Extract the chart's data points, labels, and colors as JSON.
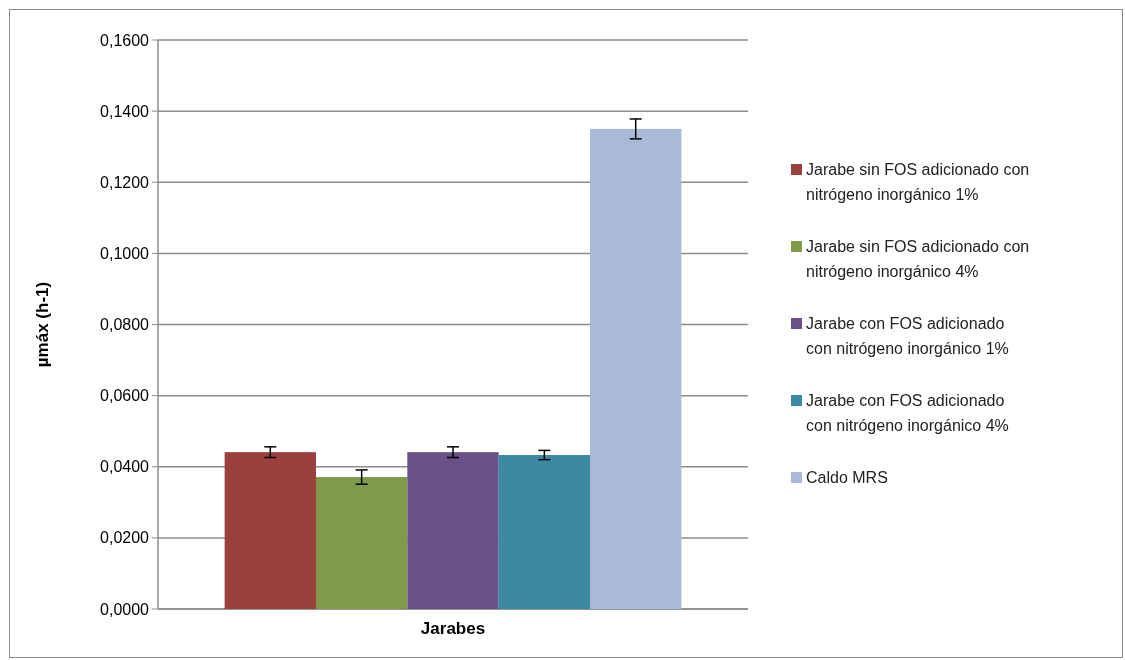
{
  "chart_data": {
    "type": "bar",
    "xlabel": "Jarabes",
    "ylabel": "µmáx (h-1)",
    "categories": [
      null
    ],
    "series": [
      {
        "name": "Jarabe sin FOS adicionado con nitrógeno inorgánico 1%",
        "color": "#9c403e",
        "values": [
          0.0441
        ],
        "errors": [
          0.0015
        ]
      },
      {
        "name": "Jarabe sin FOS adicionado con nitrógeno inorgánico 4%",
        "color": "#7f9a48",
        "values": [
          0.0371
        ],
        "errors": [
          0.002
        ]
      },
      {
        "name": "Jarabe con FOS adicionado con nitrógeno inorgánico 1%",
        "color": "#695086",
        "values": [
          0.0441
        ],
        "errors": [
          0.0015
        ]
      },
      {
        "name": "Jarabe con FOS adicionado con nitrógeno inorgánico 4%",
        "color": "#3c8aa2",
        "values": [
          0.0433
        ],
        "errors": [
          0.0013
        ]
      },
      {
        "name": "Caldo MRS",
        "color": "#aab9d7",
        "values": [
          0.135
        ],
        "errors": [
          0.0028
        ]
      }
    ],
    "ylim": [
      0,
      0.16
    ],
    "yticks": [
      {
        "value": 0,
        "label": "0,0000"
      },
      {
        "value": 0.02,
        "label": "0,0200"
      },
      {
        "value": 0.04,
        "label": "0,0400"
      },
      {
        "value": 0.06,
        "label": "0,0600"
      },
      {
        "value": 0.08,
        "label": "0,0800"
      },
      {
        "value": 0.1,
        "label": "0,1000"
      },
      {
        "value": 0.12,
        "label": "0,1200"
      },
      {
        "value": 0.14,
        "label": "0,1400"
      },
      {
        "value": 0.16,
        "label": "0,1600"
      }
    ],
    "grid": "y",
    "legend": "right"
  }
}
